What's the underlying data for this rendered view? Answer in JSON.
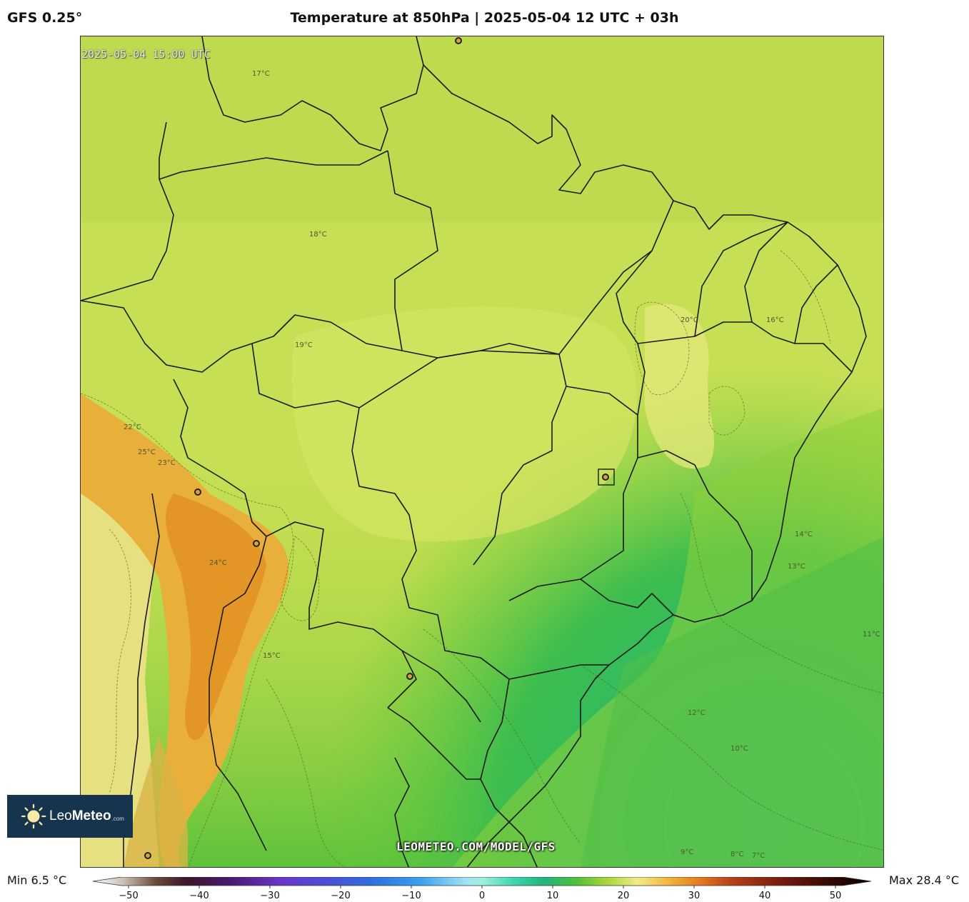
{
  "header": {
    "model": "GFS 0.25°",
    "title": "Temperature at 850hPa | 2025-05-04 12 UTC + 03h"
  },
  "map": {
    "valid_time": "2025-05-04 15:00 UTC",
    "watermark": "LEOMETEO.COM/MODEL/GFS",
    "contour_labels": [
      "17°C",
      "18°C",
      "19°C",
      "20°C",
      "16°C",
      "15°C",
      "14°C",
      "13°C",
      "12°C",
      "11°C",
      "10°C",
      "9°C",
      "8°C",
      "7°C",
      "22°C",
      "23°C",
      "24°C",
      "25°C"
    ],
    "city_markers": 6
  },
  "logo": {
    "brand_light": "Leo",
    "brand_bold": "Meteo",
    "tld": ".com"
  },
  "stats": {
    "min": "Min 6.5 °C",
    "max": "Max 28.4 °C"
  },
  "colorbar": {
    "range": [
      -50,
      50
    ],
    "ticks": [
      "−50",
      "−40",
      "−30",
      "−20",
      "−10",
      "0",
      "10",
      "20",
      "30",
      "40",
      "50"
    ],
    "stops": [
      {
        "v": -50,
        "c": "#ffffff"
      },
      {
        "v": -46,
        "c": "#c8bfb4"
      },
      {
        "v": -42,
        "c": "#6b4b3b"
      },
      {
        "v": -38,
        "c": "#3a1626"
      },
      {
        "v": -32,
        "c": "#4a1a73"
      },
      {
        "v": -26,
        "c": "#6b35c9"
      },
      {
        "v": -20,
        "c": "#4b4ed6"
      },
      {
        "v": -14,
        "c": "#2f6fe0"
      },
      {
        "v": -8,
        "c": "#3aa0f0"
      },
      {
        "v": -2,
        "c": "#a6e0f5"
      },
      {
        "v": 0,
        "c": "#9ef0dc"
      },
      {
        "v": 4,
        "c": "#3fd7b0"
      },
      {
        "v": 8,
        "c": "#21b47c"
      },
      {
        "v": 12,
        "c": "#4dbf3c"
      },
      {
        "v": 16,
        "c": "#a8d63a"
      },
      {
        "v": 20,
        "c": "#f2ea8a"
      },
      {
        "v": 24,
        "c": "#f0b63a"
      },
      {
        "v": 28,
        "c": "#e57a1f"
      },
      {
        "v": 32,
        "c": "#b8421a"
      },
      {
        "v": 38,
        "c": "#7a1d0e"
      },
      {
        "v": 44,
        "c": "#3a0a05"
      },
      {
        "v": 50,
        "c": "#050000"
      }
    ]
  }
}
